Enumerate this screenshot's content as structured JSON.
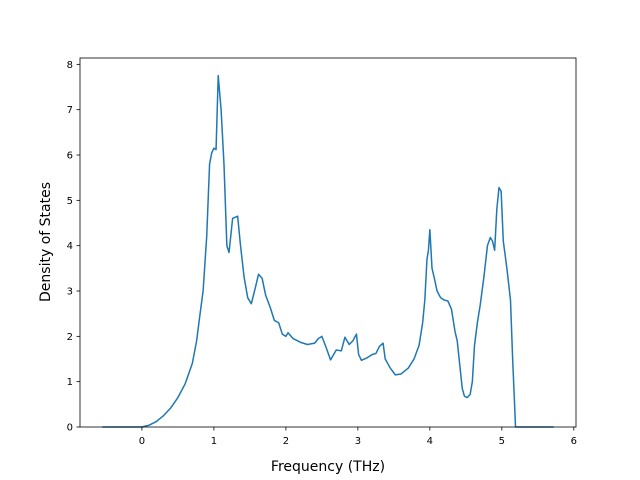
{
  "chart_data": {
    "type": "line",
    "xlabel": "Frequency (THz)",
    "ylabel": "Density of States",
    "color": "#1f77b4",
    "x": [
      -0.55,
      0.0,
      0.1,
      0.2,
      0.3,
      0.4,
      0.5,
      0.6,
      0.7,
      0.76,
      0.8,
      0.85,
      0.9,
      0.94,
      0.97,
      1.0,
      1.03,
      1.06,
      1.1,
      1.14,
      1.18,
      1.21,
      1.26,
      1.33,
      1.37,
      1.42,
      1.47,
      1.52,
      1.58,
      1.62,
      1.67,
      1.72,
      1.78,
      1.84,
      1.9,
      1.95,
      2.0,
      2.03,
      2.1,
      2.2,
      2.3,
      2.4,
      2.45,
      2.5,
      2.56,
      2.62,
      2.7,
      2.77,
      2.82,
      2.88,
      2.93,
      2.98,
      3.01,
      3.05,
      3.12,
      3.2,
      3.25,
      3.3,
      3.35,
      3.38,
      3.45,
      3.52,
      3.6,
      3.7,
      3.78,
      3.85,
      3.9,
      3.93,
      3.96,
      3.98,
      4.0,
      4.03,
      4.06,
      4.1,
      4.15,
      4.2,
      4.25,
      4.3,
      4.35,
      4.38,
      4.42,
      4.45,
      4.48,
      4.52,
      4.56,
      4.59,
      4.62,
      4.66,
      4.7,
      4.75,
      4.8,
      4.84,
      4.87,
      4.9,
      4.93,
      4.96,
      4.99,
      5.02,
      5.07,
      5.12,
      5.15,
      5.19,
      5.72
    ],
    "values": [
      0,
      0,
      0.04,
      0.12,
      0.25,
      0.42,
      0.65,
      0.95,
      1.4,
      1.9,
      2.4,
      3.0,
      4.2,
      5.8,
      6.05,
      6.15,
      6.12,
      7.75,
      7.0,
      5.8,
      4.0,
      3.85,
      4.6,
      4.65,
      4.0,
      3.3,
      2.85,
      2.72,
      3.1,
      3.37,
      3.28,
      2.9,
      2.65,
      2.35,
      2.3,
      2.05,
      2.0,
      2.08,
      1.95,
      1.87,
      1.82,
      1.85,
      1.95,
      2.0,
      1.75,
      1.48,
      1.7,
      1.68,
      1.98,
      1.82,
      1.9,
      2.05,
      1.6,
      1.47,
      1.52,
      1.6,
      1.62,
      1.78,
      1.85,
      1.5,
      1.3,
      1.15,
      1.17,
      1.3,
      1.5,
      1.8,
      2.3,
      2.8,
      3.7,
      3.9,
      4.35,
      3.5,
      3.3,
      3.0,
      2.85,
      2.8,
      2.78,
      2.6,
      2.1,
      1.9,
      1.3,
      0.85,
      0.68,
      0.65,
      0.72,
      1.0,
      1.8,
      2.3,
      2.7,
      3.3,
      4.0,
      4.18,
      4.1,
      3.9,
      4.8,
      5.28,
      5.2,
      4.1,
      3.5,
      2.8,
      1.5,
      0,
      0
    ],
    "xlim": [
      -0.86,
      6.03
    ],
    "ylim": [
      0,
      8.14
    ],
    "xticks": [
      0,
      1,
      2,
      3,
      4,
      5,
      6
    ],
    "yticks": [
      0,
      1,
      2,
      3,
      4,
      5,
      6,
      7,
      8
    ]
  }
}
